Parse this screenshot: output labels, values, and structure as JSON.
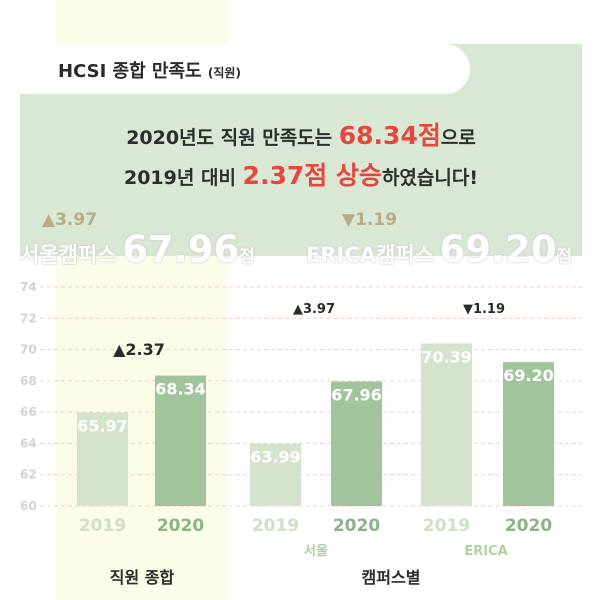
{
  "header": {
    "title": "HCSI 종합 만족도",
    "title_sub": "(직원)"
  },
  "headline": {
    "line1_pre": "2020년도 직원 만족도는 ",
    "line1_hl": "68.34점",
    "line1_post": "으로",
    "line2_pre": "2019년 대비 ",
    "line2_hl": "2.37점 상승",
    "line2_post": "하였습니다!"
  },
  "campus_summary": [
    {
      "delta": "▲3.97",
      "name": "서울캠퍼스",
      "score": "67.96",
      "unit": "점"
    },
    {
      "delta": "▼1.19",
      "name": "ERICA캠퍼스",
      "score": "69.20",
      "unit": "점"
    }
  ],
  "colors": {
    "bar_2019": "#d4e4cc",
    "bar_2020": "#a1c49d",
    "label_2019": "#cfe0c6",
    "label_2020": "#8bb486",
    "gridline": "#f1cfc6",
    "accent": "#e4473c"
  },
  "chart_data": {
    "type": "bar",
    "ylim": [
      60,
      74
    ],
    "yticks": [
      "60",
      "62",
      "64",
      "66",
      "68",
      "70",
      "72",
      "74"
    ],
    "grid": "horizontal dashed",
    "groups": [
      {
        "label": "직원 종합",
        "subgroups": [
          {
            "label": "",
            "delta": "▲2.37",
            "bars": [
              {
                "year": "2019",
                "value": 65.97,
                "label": "65.97"
              },
              {
                "year": "2020",
                "value": 68.34,
                "label": "68.34"
              }
            ]
          }
        ]
      },
      {
        "label": "캠퍼스별",
        "subgroups": [
          {
            "label": "서울",
            "delta": "▲3.97",
            "bars": [
              {
                "year": "2019",
                "value": 63.99,
                "label": "63.99"
              },
              {
                "year": "2020",
                "value": 67.96,
                "label": "67.96"
              }
            ]
          },
          {
            "label": "ERICA",
            "delta": "▼1.19",
            "bars": [
              {
                "year": "2019",
                "value": 70.39,
                "label": "70.39"
              },
              {
                "year": "2020",
                "value": 69.2,
                "label": "69.20"
              }
            ]
          }
        ]
      }
    ]
  }
}
